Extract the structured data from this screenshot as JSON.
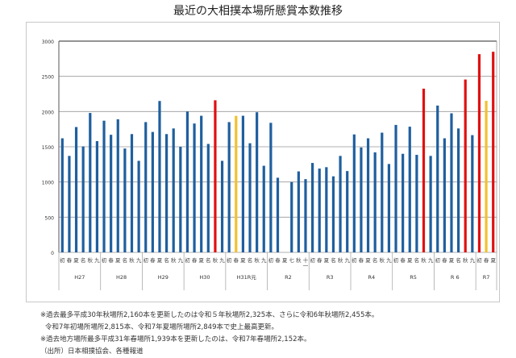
{
  "chart_data": {
    "type": "bar",
    "title": "最近の大相撲本場所懸賞本数推移",
    "xlabel": "",
    "ylabel": "",
    "ylim": [
      0,
      3000
    ],
    "yticks": [
      0,
      500,
      1000,
      1500,
      2000,
      2500,
      3000
    ],
    "grid": true,
    "legend": "none",
    "groups": [
      {
        "label": "H27",
        "categories": [
          "初",
          "春",
          "夏",
          "名",
          "秋",
          "九"
        ],
        "values": [
          1620,
          1370,
          1780,
          1505,
          1980,
          1580
        ],
        "colors": [
          "#1f5f9e",
          "#1f5f9e",
          "#1f5f9e",
          "#1f5f9e",
          "#1f5f9e",
          "#1f5f9e"
        ]
      },
      {
        "label": "H28",
        "categories": [
          "初",
          "春",
          "夏",
          "名",
          "秋",
          "九"
        ],
        "values": [
          1870,
          1670,
          1890,
          1475,
          1680,
          1300
        ],
        "colors": [
          "#1f5f9e",
          "#1f5f9e",
          "#1f5f9e",
          "#1f5f9e",
          "#1f5f9e",
          "#1f5f9e"
        ]
      },
      {
        "label": "H29",
        "categories": [
          "初",
          "春",
          "夏",
          "名",
          "秋",
          "九"
        ],
        "values": [
          1850,
          1710,
          2150,
          1680,
          1760,
          1500
        ],
        "colors": [
          "#1f5f9e",
          "#1f5f9e",
          "#1f5f9e",
          "#1f5f9e",
          "#1f5f9e",
          "#1f5f9e"
        ]
      },
      {
        "label": "H30",
        "categories": [
          "初",
          "春",
          "夏",
          "名",
          "秋",
          "九"
        ],
        "values": [
          2000,
          1830,
          1940,
          1540,
          2160,
          1300
        ],
        "colors": [
          "#1f5f9e",
          "#1f5f9e",
          "#1f5f9e",
          "#1f5f9e",
          "#e01010",
          "#1f5f9e"
        ]
      },
      {
        "label": "H31R元",
        "categories": [
          "初",
          "春",
          "夏",
          "名",
          "秋",
          "九"
        ],
        "values": [
          1850,
          1939,
          1940,
          1550,
          1990,
          1230
        ],
        "colors": [
          "#1f5f9e",
          "#f2c12e",
          "#1f5f9e",
          "#1f5f9e",
          "#1f5f9e",
          "#1f5f9e"
        ]
      },
      {
        "label": "R2",
        "categories": [
          "初",
          "春",
          "夏",
          "七",
          "秋",
          "十一"
        ],
        "values": [
          1840,
          1060,
          null,
          1000,
          1150,
          1040
        ],
        "colors": [
          "#1f5f9e",
          "#1f5f9e",
          "#1f5f9e",
          "#1f5f9e",
          "#1f5f9e",
          "#1f5f9e"
        ]
      },
      {
        "label": "R3",
        "categories": [
          "初",
          "春",
          "夏",
          "名",
          "秋",
          "九"
        ],
        "values": [
          1270,
          1190,
          1210,
          1080,
          1370,
          1155
        ],
        "colors": [
          "#1f5f9e",
          "#1f5f9e",
          "#1f5f9e",
          "#1f5f9e",
          "#1f5f9e",
          "#1f5f9e"
        ]
      },
      {
        "label": "R4",
        "categories": [
          "初",
          "春",
          "夏",
          "名",
          "秋",
          "九"
        ],
        "values": [
          1675,
          1490,
          1620,
          1420,
          1700,
          1255
        ],
        "colors": [
          "#1f5f9e",
          "#1f5f9e",
          "#1f5f9e",
          "#1f5f9e",
          "#1f5f9e",
          "#1f5f9e"
        ]
      },
      {
        "label": "R5",
        "categories": [
          "初",
          "春",
          "夏",
          "名",
          "秋",
          "九"
        ],
        "values": [
          1810,
          1400,
          1785,
          1385,
          2325,
          1370
        ],
        "colors": [
          "#1f5f9e",
          "#1f5f9e",
          "#1f5f9e",
          "#1f5f9e",
          "#e01010",
          "#1f5f9e"
        ]
      },
      {
        "label": "R 6",
        "categories": [
          "初",
          "春",
          "夏",
          "名",
          "秋",
          "九"
        ],
        "values": [
          2085,
          1620,
          1975,
          1760,
          2455,
          1665
        ],
        "colors": [
          "#1f5f9e",
          "#1f5f9e",
          "#1f5f9e",
          "#1f5f9e",
          "#e01010",
          "#1f5f9e"
        ]
      },
      {
        "label": "R7",
        "categories": [
          "初",
          "春",
          "夏"
        ],
        "values": [
          2815,
          2152,
          2849
        ],
        "colors": [
          "#e01010",
          "#f2c12e",
          "#e01010"
        ]
      }
    ]
  },
  "notes": [
    "※過去最多平成30年秋場所2,160本を更新したのは令和５年秋場所2,325本、さらに令和6年秋場所2,455本。",
    "令和7年初場所場所2,815本、令和7年夏場所場所2,849本で史上最高更新。",
    "※過去地方場所最多平成31年春場所1,939本を更新したのは、令和7年春場所2,152本。",
    "（出所）日本相撲協会、各種報道"
  ]
}
